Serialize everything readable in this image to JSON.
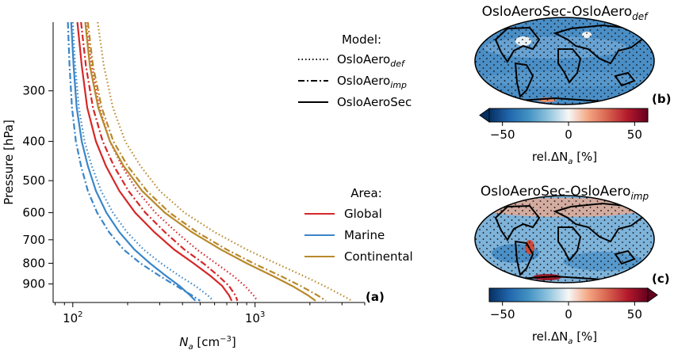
{
  "chart_data": [
    {
      "type": "line",
      "panel_label": "(a)",
      "xlabel": "N",
      "xlabel_sub": "a",
      "xlabel_unit_pre": " [cm",
      "xlabel_unit_sup": "−3",
      "xlabel_unit_post": "]",
      "ylabel": "Pressure [hPa]",
      "xscale": "log",
      "yscale": "log",
      "y_inverted": true,
      "xlim": [
        78,
        4000
      ],
      "ylim": [
        1000,
        203
      ],
      "xticks": [
        {
          "value": 100,
          "base": "10",
          "exp": "2"
        },
        {
          "value": 1000,
          "base": "10",
          "exp": "3"
        }
      ],
      "yticks": [
        {
          "value": 300,
          "label": "300"
        },
        {
          "value": 400,
          "label": "400"
        },
        {
          "value": 500,
          "label": "500"
        },
        {
          "value": 600,
          "label": "600"
        },
        {
          "value": 700,
          "label": "700"
        },
        {
          "value": 800,
          "label": "800"
        },
        {
          "value": 900,
          "label": "900"
        }
      ],
      "legend_model": {
        "title": "Model:",
        "entries": [
          {
            "text": "OsloAero",
            "sub": "def",
            "dash": "dotted"
          },
          {
            "text": "OsloAero",
            "sub": "imp",
            "dash": "dashdot"
          },
          {
            "text": "OsloAeroSec",
            "sub": "",
            "dash": "solid"
          }
        ]
      },
      "legend_area": {
        "title": "Area:",
        "entries": [
          {
            "text": "Global",
            "color": "#d62728"
          },
          {
            "text": "Marine",
            "color": "#3a86c8"
          },
          {
            "text": "Continental",
            "color": "#b8892b"
          }
        ]
      },
      "series": [
        {
          "area": "Global",
          "model": "OsloAeroSec",
          "color": "#d62728",
          "dash": "solid",
          "points": [
            [
              106,
              203
            ],
            [
              112,
              260
            ],
            [
              120,
              330
            ],
            [
              134,
              400
            ],
            [
              152,
              460
            ],
            [
              180,
              530
            ],
            [
              220,
              600
            ],
            [
              280,
              670
            ],
            [
              360,
              740
            ],
            [
              460,
              800
            ],
            [
              570,
              860
            ],
            [
              660,
              910
            ],
            [
              720,
              960
            ],
            [
              745,
              990
            ]
          ]
        },
        {
          "area": "Global",
          "model": "OsloAero_imp",
          "color": "#d62728",
          "dash": "dashdot",
          "points": [
            [
              111,
              203
            ],
            [
              118,
              260
            ],
            [
              129,
              330
            ],
            [
              146,
              400
            ],
            [
              168,
              460
            ],
            [
              202,
              530
            ],
            [
              250,
              600
            ],
            [
              320,
              670
            ],
            [
              410,
              740
            ],
            [
              520,
              800
            ],
            [
              630,
              860
            ],
            [
              720,
              910
            ],
            [
              780,
              960
            ],
            [
              800,
              990
            ]
          ]
        },
        {
          "area": "Global",
          "model": "OsloAero_def",
          "color": "#d62728",
          "dash": "dotted",
          "points": [
            [
              118,
              203
            ],
            [
              127,
              260
            ],
            [
              140,
              330
            ],
            [
              160,
              400
            ],
            [
              186,
              460
            ],
            [
              226,
              530
            ],
            [
              284,
              600
            ],
            [
              370,
              670
            ],
            [
              480,
              740
            ],
            [
              610,
              800
            ],
            [
              760,
              860
            ],
            [
              880,
              910
            ],
            [
              980,
              960
            ],
            [
              1030,
              990
            ]
          ]
        },
        {
          "area": "Marine",
          "model": "OsloAeroSec",
          "color": "#3a86c8",
          "dash": "solid",
          "points": [
            [
              98,
              203
            ],
            [
              101,
              260
            ],
            [
              105,
              330
            ],
            [
              112,
              400
            ],
            [
              121,
              460
            ],
            [
              134,
              530
            ],
            [
              153,
              600
            ],
            [
              180,
              670
            ],
            [
              218,
              740
            ],
            [
              265,
              800
            ],
            [
              325,
              860
            ],
            [
              385,
              910
            ],
            [
              440,
              960
            ],
            [
              470,
              990
            ]
          ]
        },
        {
          "area": "Marine",
          "model": "OsloAero_imp",
          "color": "#3a86c8",
          "dash": "dashdot",
          "points": [
            [
              94,
              203
            ],
            [
              96,
              260
            ],
            [
              99,
              330
            ],
            [
              104,
              400
            ],
            [
              111,
              460
            ],
            [
              121,
              530
            ],
            [
              136,
              600
            ],
            [
              158,
              670
            ],
            [
              190,
              740
            ],
            [
              235,
              800
            ],
            [
              300,
              860
            ],
            [
              370,
              910
            ],
            [
              450,
              960
            ],
            [
              500,
              990
            ]
          ]
        },
        {
          "area": "Marine",
          "model": "OsloAero_def",
          "color": "#3a86c8",
          "dash": "dotted",
          "points": [
            [
              100,
              203
            ],
            [
              103,
              260
            ],
            [
              108,
              330
            ],
            [
              116,
              400
            ],
            [
              127,
              460
            ],
            [
              143,
              530
            ],
            [
              166,
              600
            ],
            [
              198,
              670
            ],
            [
              245,
              740
            ],
            [
              305,
              800
            ],
            [
              385,
              860
            ],
            [
              470,
              910
            ],
            [
              550,
              960
            ],
            [
              590,
              990
            ]
          ]
        },
        {
          "area": "Continental",
          "model": "OsloAeroSec",
          "color": "#b8892b",
          "dash": "solid",
          "points": [
            [
              117,
              203
            ],
            [
              124,
              260
            ],
            [
              138,
              330
            ],
            [
              160,
              400
            ],
            [
              190,
              460
            ],
            [
              240,
              530
            ],
            [
              320,
              600
            ],
            [
              450,
              670
            ],
            [
              650,
              740
            ],
            [
              900,
              800
            ],
            [
              1250,
              860
            ],
            [
              1600,
              910
            ],
            [
              1950,
              960
            ],
            [
              2150,
              990
            ]
          ]
        },
        {
          "area": "Continental",
          "model": "OsloAero_imp",
          "color": "#b8892b",
          "dash": "dashdot",
          "points": [
            [
              121,
              203
            ],
            [
              129,
              260
            ],
            [
              144,
              330
            ],
            [
              167,
              400
            ],
            [
              200,
              460
            ],
            [
              255,
              530
            ],
            [
              340,
              600
            ],
            [
              480,
              670
            ],
            [
              700,
              740
            ],
            [
              980,
              800
            ],
            [
              1380,
              860
            ],
            [
              1780,
              910
            ],
            [
              2200,
              960
            ],
            [
              2450,
              990
            ]
          ]
        },
        {
          "area": "Continental",
          "model": "OsloAero_def",
          "color": "#b8892b",
          "dash": "dotted",
          "points": [
            [
              137,
              203
            ],
            [
              148,
              260
            ],
            [
              166,
              330
            ],
            [
              194,
              400
            ],
            [
              235,
              460
            ],
            [
              300,
              530
            ],
            [
              410,
              600
            ],
            [
              600,
              670
            ],
            [
              900,
              740
            ],
            [
              1300,
              800
            ],
            [
              1850,
              860
            ],
            [
              2400,
              910
            ],
            [
              3000,
              960
            ],
            [
              3400,
              990
            ]
          ]
        }
      ]
    },
    {
      "type": "heatmap",
      "panel_label": "(b)",
      "title": "OsloAeroSec-OsloAero",
      "title_sub": "def",
      "colorbar_label": "rel.ΔN",
      "colorbar_label_sub": "a",
      "colorbar_label_post": " [%]",
      "colorbar_range": [
        -60,
        60
      ],
      "colorbar_extend": "min",
      "colorbar_ticks": [
        {
          "value": -50,
          "label": "−50"
        },
        {
          "value": 0,
          "label": "0"
        },
        {
          "value": 50,
          "label": "50"
        }
      ],
      "colormap": [
        "#053061",
        "#2166ac",
        "#4393c3",
        "#92c5de",
        "#f7f7f7",
        "#f4a582",
        "#d6604d",
        "#b2182b",
        "#67001f"
      ]
    },
    {
      "type": "heatmap",
      "panel_label": "(c)",
      "title": "OsloAeroSec-OsloAero",
      "title_sub": "imp",
      "colorbar_label": "rel.ΔN",
      "colorbar_label_sub": "a",
      "colorbar_label_post": " [%]",
      "colorbar_range": [
        -60,
        60
      ],
      "colorbar_extend": "max",
      "colorbar_ticks": [
        {
          "value": -50,
          "label": "−50"
        },
        {
          "value": 0,
          "label": "0"
        },
        {
          "value": 50,
          "label": "50"
        }
      ],
      "colormap": [
        "#053061",
        "#2166ac",
        "#4393c3",
        "#92c5de",
        "#f7f7f7",
        "#f4a582",
        "#d6604d",
        "#b2182b",
        "#67001f"
      ]
    }
  ]
}
